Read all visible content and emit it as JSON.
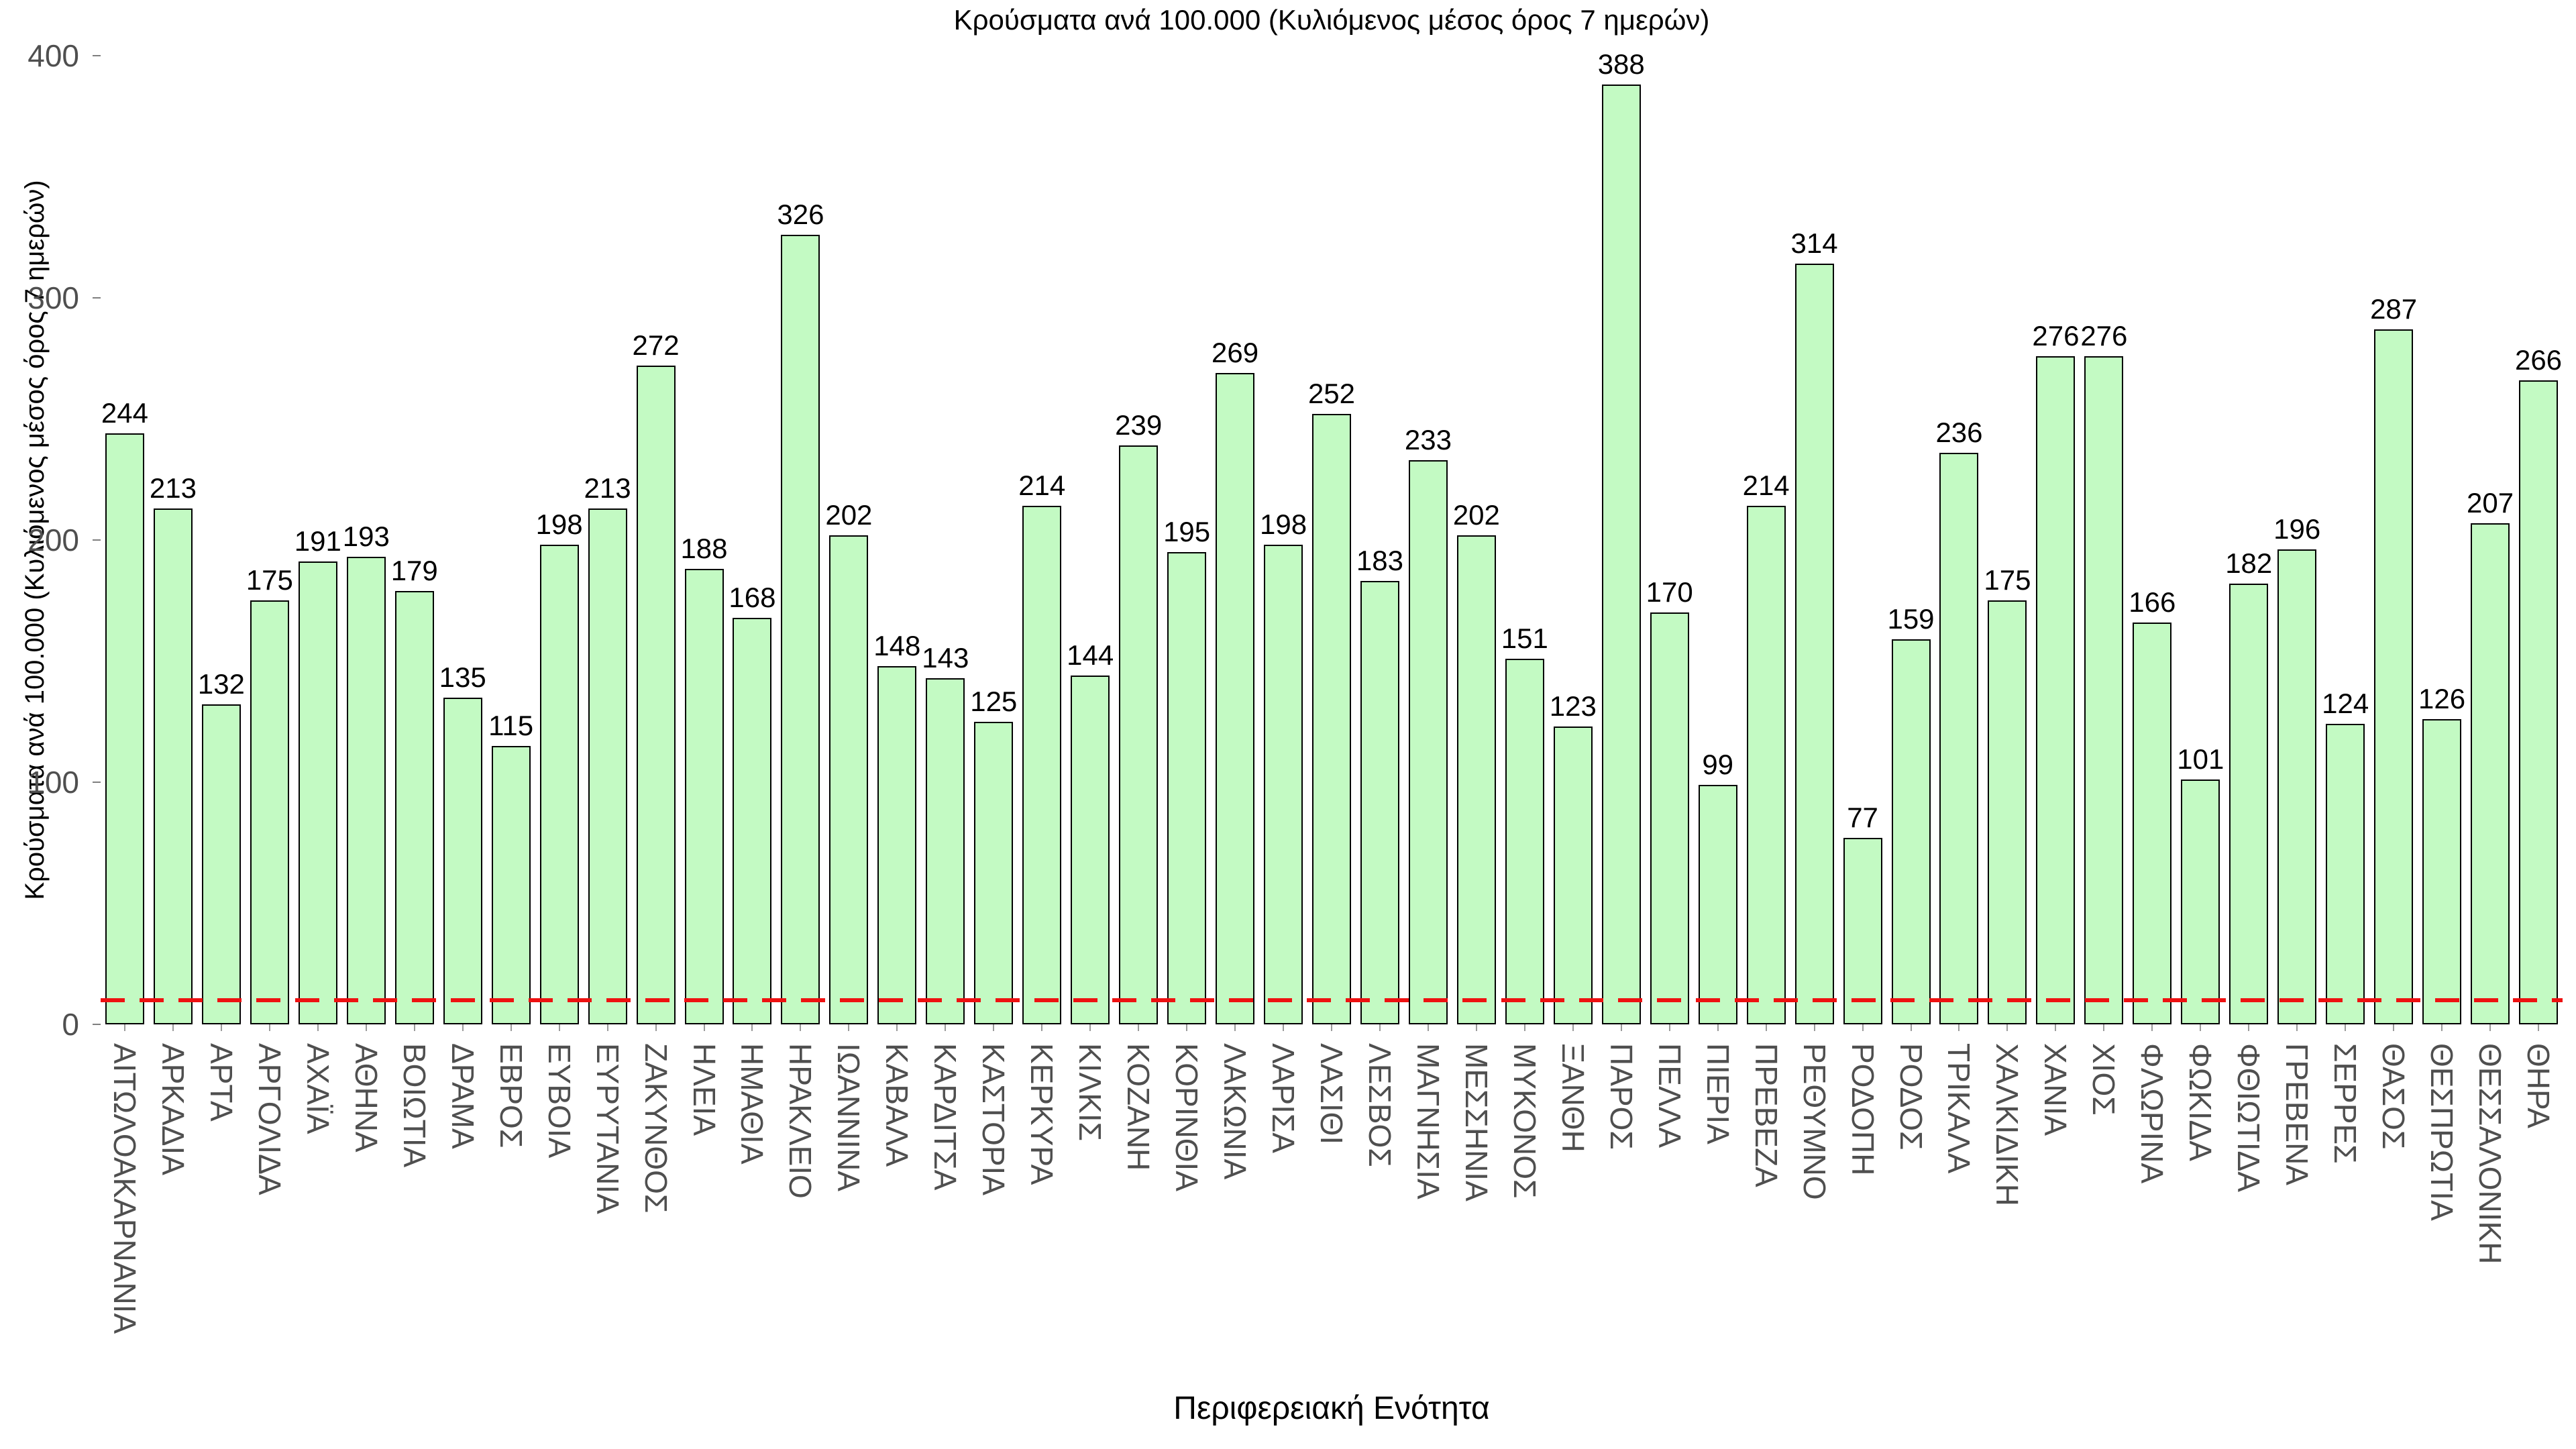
{
  "title": "Κρούσματα ανά 100.000 (Κυλιόμενος μέσος όρος 7 ημερών)",
  "chart_data": {
    "type": "bar",
    "title": "Κρούσματα ανά 100.000 (Κυλιόμενος μέσος όρος 7 ημερών)",
    "xlabel": "Περιφερειακή Ενότητα",
    "ylabel": "Κρούσματα ανά 100.000 (Κυλιόμενος μέσος όρος 7 ημερών)",
    "categories": [
      "ΑΙΤΩΛΟΑΚΑΡΝΑΝΙΑ",
      "ΑΡΚΑΔΙΑ",
      "ΑΡΤΑ",
      "ΑΡΓΟΛΙΔΑ",
      "ΑΧΑΪΑ",
      "ΑΘΗΝΑ",
      "ΒΟΙΩΤΙΑ",
      "ΔΡΑΜΑ",
      "ΕΒΡΟΣ",
      "ΕΥΒΟΙΑ",
      "ΕΥΡΥΤΑΝΙΑ",
      "ΖΑΚΥΝΘΟΣ",
      "ΗΛΕΙΑ",
      "ΗΜΑΘΙΑ",
      "ΗΡΑΚΛΕΙΟ",
      "ΙΩΑΝΝΙΝΑ",
      "ΚΑΒΑΛΑ",
      "ΚΑΡΔΙΤΣΑ",
      "ΚΑΣΤΟΡΙΑ",
      "ΚΕΡΚΥΡΑ",
      "ΚΙΛΚΙΣ",
      "ΚΟΖΑΝΗ",
      "ΚΟΡΙΝΘΙΑ",
      "ΛΑΚΩΝΙΑ",
      "ΛΑΡΙΣΑ",
      "ΛΑΣΙΘΙ",
      "ΛΕΣΒΟΣ",
      "ΜΑΓΝΗΣΙΑ",
      "ΜΕΣΣΗΝΙΑ",
      "ΜΥΚΟΝΟΣ",
      "ΞΑΝΘΗ",
      "ΠΑΡΟΣ",
      "ΠΕΛΛΑ",
      "ΠΙΕΡΙΑ",
      "ΠΡΕΒΕΖΑ",
      "ΡΕΘΥΜΝΟ",
      "ΡΟΔΟΠΗ",
      "ΡΟΔΟΣ",
      "ΤΡΙΚΑΛΑ",
      "ΧΑΛΚΙΔΙΚΗ",
      "ΧΑΝΙΑ",
      "ΧΙΟΣ",
      "ΦΛΩΡΙΝΑ",
      "ΦΩΚΙΔΑ",
      "ΦΘΙΩΤΙΔΑ",
      "ΓΡΕΒΕΝΑ",
      "ΣΕΡΡΕΣ",
      "ΘΑΣΟΣ",
      "ΘΕΣΠΡΩΤΙΑ",
      "ΘΕΣΣΑΛΟΝΙΚΗ",
      "ΘΗΡΑ"
    ],
    "values": [
      244,
      213,
      132,
      175,
      191,
      193,
      179,
      135,
      115,
      198,
      213,
      272,
      188,
      168,
      326,
      202,
      148,
      143,
      125,
      214,
      144,
      239,
      195,
      269,
      198,
      252,
      183,
      233,
      202,
      151,
      123,
      388,
      170,
      99,
      214,
      314,
      77,
      159,
      236,
      175,
      276,
      276,
      166,
      101,
      182,
      196,
      124,
      287,
      126,
      207,
      266
    ],
    "ylim": [
      0,
      400
    ],
    "yticks": [
      0,
      100,
      200,
      300,
      400
    ],
    "grid": false,
    "legend": null,
    "bar_fill_color": "#c3fac3",
    "bar_edge_color": "#000000",
    "threshold_line": {
      "value": 10,
      "style": "dashed",
      "color": "#ee1111"
    }
  }
}
